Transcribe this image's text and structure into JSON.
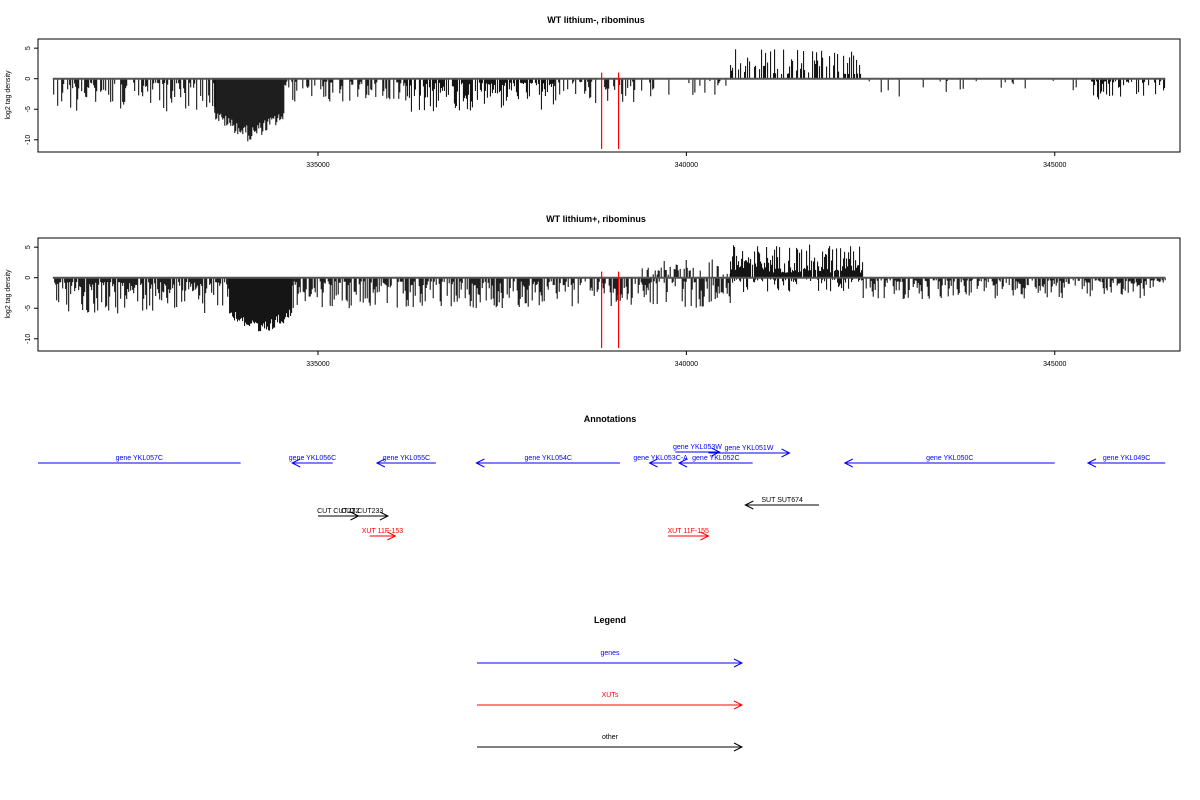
{
  "chart_data": [
    {
      "type": "bar",
      "title": "WT lithium-, ribominus",
      "ylabel": "log2 tag density",
      "xlim": [
        331200,
        346700
      ],
      "ylim": [
        -12,
        6.5
      ],
      "x_ticks": [
        335000,
        340000,
        345000
      ],
      "x_tick_labels": [
        "335000",
        "340000",
        "345000"
      ],
      "y_ticks": [
        5,
        0,
        -5,
        -10
      ],
      "y_tick_labels": [
        "5",
        "0",
        "-5",
        "-10"
      ],
      "grid": false,
      "baseline": 0,
      "segments": [
        {
          "start": 331400,
          "end": 333600,
          "min": -5.5,
          "density": 0.55,
          "strand": "minus"
        },
        {
          "start": 333600,
          "end": 334550,
          "min": -10.5,
          "density": 1.0,
          "strand": "minus",
          "peak": true
        },
        {
          "start": 334550,
          "end": 336200,
          "min": -4.0,
          "density": 0.45,
          "strand": "minus"
        },
        {
          "start": 336200,
          "end": 338200,
          "min": -5.5,
          "density": 0.75,
          "strand": "minus"
        },
        {
          "start": 338200,
          "end": 339600,
          "min": -4.0,
          "density": 0.4,
          "strand": "minus"
        },
        {
          "start": 339600,
          "end": 340600,
          "min": -3.0,
          "density": 0.2,
          "strand": "minus"
        },
        {
          "start": 340600,
          "end": 342400,
          "max": 5.0,
          "density": 0.45,
          "strand": "plus"
        },
        {
          "start": 342400,
          "end": 345500,
          "min": -3.0,
          "density": 0.1,
          "strand": "minus"
        },
        {
          "start": 345500,
          "end": 346500,
          "min": -3.5,
          "density": 0.45,
          "strand": "minus"
        }
      ],
      "red_markers": [
        338850,
        339080
      ],
      "red_marker_range": [
        -11.5,
        1.0
      ]
    },
    {
      "type": "bar",
      "title": "WT lithium+, ribominus",
      "ylabel": "log2 tag density",
      "xlim": [
        331200,
        346700
      ],
      "ylim": [
        -12,
        6.5
      ],
      "x_ticks": [
        335000,
        340000,
        345000
      ],
      "x_tick_labels": [
        "335000",
        "340000",
        "345000"
      ],
      "y_ticks": [
        5,
        0,
        -5,
        -10
      ],
      "y_tick_labels": [
        "5",
        "0",
        "-5",
        "-10"
      ],
      "grid": false,
      "baseline": 0,
      "segments": [
        {
          "start": 331400,
          "end": 333800,
          "min": -6.0,
          "density": 0.85,
          "strand": "minus"
        },
        {
          "start": 333800,
          "end": 334650,
          "min": -10.0,
          "density": 1.0,
          "strand": "minus",
          "peak": true
        },
        {
          "start": 334650,
          "end": 338600,
          "min": -5.0,
          "density": 0.75,
          "strand": "minus"
        },
        {
          "start": 338600,
          "end": 340600,
          "min": -5.0,
          "density": 0.65,
          "strand": "minus"
        },
        {
          "start": 339400,
          "end": 340600,
          "max": 3.0,
          "density": 0.35,
          "strand": "plus"
        },
        {
          "start": 340600,
          "end": 342400,
          "max": 5.5,
          "density": 0.95,
          "strand": "plus"
        },
        {
          "start": 340600,
          "end": 342400,
          "min": -2.5,
          "density": 0.45,
          "strand": "minus"
        },
        {
          "start": 342400,
          "end": 346500,
          "min": -3.5,
          "density": 0.65,
          "strand": "minus"
        }
      ],
      "red_markers": [
        338850,
        339080
      ],
      "red_marker_range": [
        -11.5,
        1.0
      ]
    },
    {
      "type": "annotation",
      "title": "Annotations",
      "xlim": [
        331200,
        346700
      ],
      "features": [
        {
          "label": "gene YKL057C",
          "color": "#0000ff",
          "start": 331200,
          "end": 333950,
          "dir": "none",
          "row": 0
        },
        {
          "label": "gene YKL056C",
          "color": "#0000ff",
          "start": 334650,
          "end": 335200,
          "dir": "left",
          "row": 0
        },
        {
          "label": "gene YKL055C",
          "color": "#0000ff",
          "start": 335800,
          "end": 336600,
          "dir": "left",
          "row": 0
        },
        {
          "label": "gene YKL054C",
          "color": "#0000ff",
          "start": 337150,
          "end": 339100,
          "dir": "left",
          "row": 0
        },
        {
          "label": "gene YKL053C-A",
          "color": "#0000ff",
          "start": 339500,
          "end": 339800,
          "dir": "left",
          "row": 0
        },
        {
          "label": "gene YKL053W",
          "color": "#0000ff",
          "start": 339850,
          "end": 340450,
          "dir": "right",
          "row": -1
        },
        {
          "label": "gene YKL052C",
          "color": "#0000ff",
          "start": 339900,
          "end": 340900,
          "dir": "left",
          "row": 0
        },
        {
          "label": "gene YKL051W",
          "color": "#0000ff",
          "start": 340300,
          "end": 341400,
          "dir": "right",
          "row": -2
        },
        {
          "label": "gene YKL050C",
          "color": "#0000ff",
          "start": 342150,
          "end": 345000,
          "dir": "left",
          "row": 0
        },
        {
          "label": "gene YKL049C",
          "color": "#0000ff",
          "start": 345450,
          "end": 346500,
          "dir": "left",
          "row": 0
        },
        {
          "label": "SUT SUT674",
          "color": "#000000",
          "start": 340800,
          "end": 341800,
          "dir": "left",
          "row": 1
        },
        {
          "label": "CUT CUT232",
          "color": "#000000",
          "start": 335000,
          "end": 335550,
          "dir": "right",
          "row": 2
        },
        {
          "label": "CUT CUT233",
          "color": "#000000",
          "start": 335250,
          "end": 335950,
          "dir": "right",
          "row": 2
        },
        {
          "label": "XUT 11F-153",
          "color": "#ff0000",
          "start": 335700,
          "end": 336050,
          "dir": "right",
          "row": 3
        },
        {
          "label": "XUT 11F-155",
          "color": "#ff0000",
          "start": 339750,
          "end": 340300,
          "dir": "right",
          "row": 3
        }
      ]
    },
    {
      "type": "legend",
      "title": "Legend",
      "entries": [
        {
          "label": "genes",
          "color": "#0000ff"
        },
        {
          "label": "XUTs",
          "color": "#ff0000"
        },
        {
          "label": "other",
          "color": "#000000"
        }
      ]
    }
  ]
}
